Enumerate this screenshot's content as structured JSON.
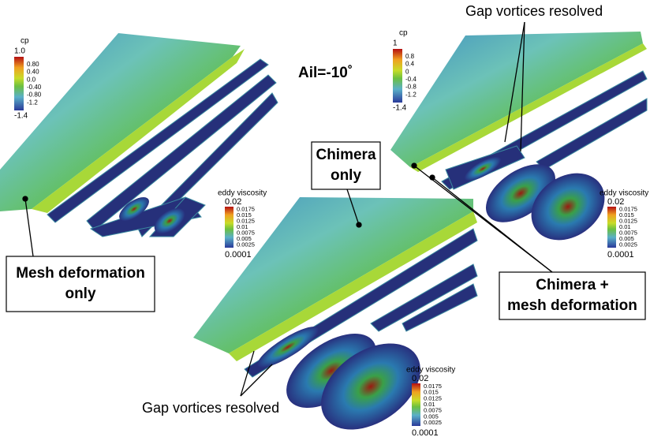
{
  "annotation": "Ail=-10˚",
  "gap_labels": [
    "Gap vortices resolved",
    "Gap vortices resolved"
  ],
  "boxes": [
    {
      "lines": [
        "Mesh deformation",
        "only"
      ]
    },
    {
      "lines": [
        "Chimera",
        "only"
      ]
    },
    {
      "lines": [
        "Chimera +",
        "mesh deformation"
      ]
    }
  ],
  "cp_legends": [
    {
      "title": "cp",
      "ticks": [
        "1.0",
        "0.80",
        "0.40",
        "0.0",
        "-0.40",
        "-0.80",
        "-1.2",
        "-1.4"
      ]
    },
    {
      "title": "cp",
      "ticks": [
        "1",
        "0.8",
        "0.4",
        "0",
        "-0.4",
        "-0.8",
        "-1.2",
        "-1.4"
      ]
    }
  ],
  "eddy_legends": [
    {
      "title": "eddy viscosity",
      "ticks": [
        "0.02",
        "0.0175",
        "0.015",
        "0.0125",
        "0.01",
        "0.0075",
        "0.005",
        "0.0025",
        "0.0001"
      ]
    },
    {
      "title": "eddy viscosity",
      "ticks": [
        "0.02",
        "0.0175",
        "0.015",
        "0.0125",
        "0.01",
        "0.0075",
        "0.005",
        "0.0025",
        "0.0001"
      ]
    },
    {
      "title": "eddy viscosity",
      "ticks": [
        "0.02",
        "0.0175",
        "0.015",
        "0.0125",
        "0.01",
        "0.0075",
        "0.005",
        "0.0025",
        "0.0001"
      ]
    }
  ]
}
